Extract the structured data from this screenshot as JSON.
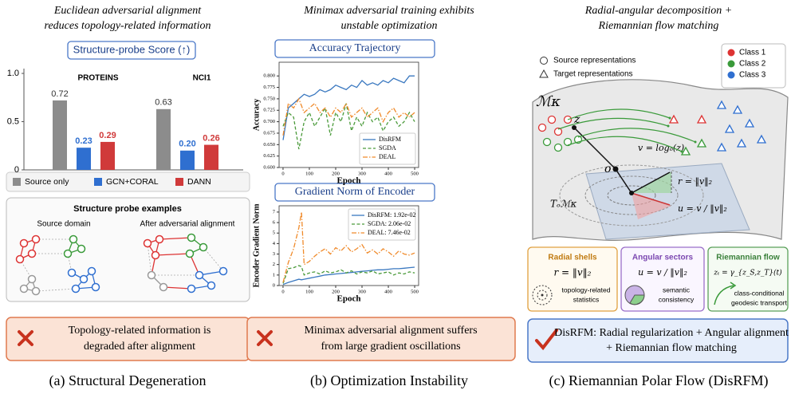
{
  "chart_data": [
    {
      "type": "bar",
      "title": "Structure-probe Score (↑)",
      "categories": [
        "PROTEINS",
        "NCI1"
      ],
      "series": [
        {
          "name": "Source only",
          "color": "#8c8c8c",
          "values": [
            0.72,
            0.63
          ],
          "value_labels": [
            "0.72",
            "0.63"
          ]
        },
        {
          "name": "GCN+CORAL",
          "color": "#2f6fd0",
          "values": [
            0.23,
            0.2
          ],
          "value_labels": [
            "0.23",
            "0.20"
          ]
        },
        {
          "name": "DANN",
          "color": "#d03a3a",
          "values": [
            0.29,
            0.26
          ],
          "value_labels": [
            "0.29",
            "0.26"
          ]
        }
      ],
      "ylim": [
        0,
        1.05
      ],
      "yticks": [
        0,
        0.5,
        {
          "value": 1,
          "label": "1.0"
        }
      ]
    },
    {
      "type": "line",
      "title": "Accuracy Trajectory",
      "x_label": "Epoch",
      "y_label": "Accuracy",
      "x": [
        0,
        20,
        40,
        60,
        80,
        100,
        120,
        140,
        160,
        180,
        200,
        220,
        240,
        260,
        280,
        300,
        320,
        340,
        360,
        380,
        400,
        420,
        440,
        460,
        480,
        500
      ],
      "series": [
        {
          "name": "DisRFM",
          "color": "#3a78c0",
          "dash": "solid",
          "values": [
            0.66,
            0.73,
            0.74,
            0.75,
            0.76,
            0.755,
            0.76,
            0.77,
            0.765,
            0.77,
            0.78,
            0.775,
            0.77,
            0.78,
            0.775,
            0.79,
            0.78,
            0.785,
            0.78,
            0.79,
            0.785,
            0.795,
            0.79,
            0.785,
            0.8,
            0.8
          ]
        },
        {
          "name": "SGDA",
          "color": "#4a9a3a",
          "dash": "dashed",
          "values": [
            0.69,
            0.72,
            0.71,
            0.64,
            0.7,
            0.72,
            0.69,
            0.71,
            0.73,
            0.67,
            0.72,
            0.7,
            0.74,
            0.68,
            0.71,
            0.69,
            0.72,
            0.7,
            0.71,
            0.68,
            0.7,
            0.71,
            0.69,
            0.7,
            0.72,
            0.7
          ]
        },
        {
          "name": "DEAL",
          "color": "#f08a2a",
          "dash": "dashdot",
          "values": [
            0.67,
            0.74,
            0.73,
            0.75,
            0.72,
            0.73,
            0.74,
            0.72,
            0.73,
            0.71,
            0.73,
            0.72,
            0.74,
            0.71,
            0.72,
            0.73,
            0.71,
            0.72,
            0.73,
            0.7,
            0.72,
            0.73,
            0.71,
            0.72,
            0.71,
            0.72
          ]
        }
      ],
      "xlim": [
        -15,
        515
      ],
      "xticks": [
        0,
        100,
        200,
        300,
        400,
        500
      ],
      "ylim": [
        0.6,
        0.83
      ],
      "yticks": [
        {
          "value": 0.6,
          "label": "0.600"
        },
        {
          "value": 0.625,
          "label": "0.625"
        },
        {
          "value": 0.65,
          "label": "0.650"
        },
        {
          "value": 0.675,
          "label": "0.675"
        },
        {
          "value": 0.7,
          "label": "0.700"
        },
        {
          "value": 0.725,
          "label": "0.725"
        },
        {
          "value": 0.75,
          "label": "0.750"
        },
        {
          "value": 0.775,
          "label": "0.775"
        },
        {
          "value": 0.8,
          "label": "0.800"
        }
      ],
      "legend": "lower right"
    },
    {
      "type": "line",
      "title": "Gradient Norm of Encoder",
      "x_label": "Epoch",
      "y_label": "Encoder Gradient Norm",
      "x": [
        0,
        20,
        40,
        60,
        70,
        80,
        100,
        120,
        140,
        160,
        180,
        200,
        220,
        240,
        260,
        280,
        300,
        320,
        340,
        360,
        380,
        400,
        420,
        440,
        460,
        480,
        500
      ],
      "series": [
        {
          "name": "DisRFM: 1.92e-02",
          "color": "#3a78c0",
          "dash": "solid",
          "values": [
            0.1,
            0.3,
            0.45,
            0.6,
            0.55,
            0.6,
            0.7,
            0.8,
            0.9,
            1.0,
            1.05,
            1.1,
            1.15,
            1.2,
            1.25,
            1.3,
            1.35,
            1.4,
            1.45,
            1.5,
            1.5,
            1.55,
            1.6,
            1.6,
            1.65,
            1.7,
            1.75
          ]
        },
        {
          "name": "SGDA: 2.06e-02",
          "color": "#4a9a3a",
          "dash": "dashed",
          "values": [
            0.2,
            1.6,
            1.7,
            1.9,
            1.8,
            1.0,
            1.2,
            1.3,
            1.1,
            1.4,
            1.2,
            1.3,
            1.5,
            1.2,
            1.4,
            1.1,
            1.3,
            1.2,
            1.4,
            1.1,
            1.2,
            1.3,
            1.0,
            1.2,
            1.1,
            1.3,
            1.2
          ]
        },
        {
          "name": "DEAL: 7.46e-02",
          "color": "#f08a2a",
          "dash": "dashdot",
          "values": [
            0.3,
            2.2,
            3.5,
            5.5,
            7.0,
            2.0,
            2.3,
            2.8,
            3.2,
            3.5,
            3.0,
            3.6,
            3.3,
            3.8,
            3.2,
            3.5,
            3.9,
            3.1,
            3.4,
            3.0,
            3.5,
            3.2,
            2.8,
            3.3,
            3.0,
            2.9,
            3.1
          ]
        }
      ],
      "xlim": [
        -15,
        515
      ],
      "xticks": [
        0,
        100,
        200,
        300,
        400,
        500
      ],
      "ylim": [
        0,
        7.6
      ],
      "yticks": [
        0,
        1,
        2,
        3,
        4,
        5,
        6,
        7
      ],
      "legend": "upper right"
    }
  ],
  "panel_a": {
    "title": [
      "Euclidean adversarial alignment",
      "reduces topology-related information"
    ],
    "examples": {
      "title": "Structure probe examples",
      "left": "Source domain",
      "right": "After adversarial alignment"
    },
    "message": [
      "Topology-related information is",
      "degraded after alignment"
    ],
    "caption": "(a) Structural Degeneration"
  },
  "panel_b": {
    "title": [
      "Minimax adversarial training exhibits",
      "unstable optimization"
    ],
    "message": [
      "Minimax adversarial alignment suffers",
      "from large gradient oscillations"
    ],
    "caption": "(b) Optimization Instability"
  },
  "panel_c": {
    "title": [
      "Radial-angular decomposition +",
      "Riemannian flow matching"
    ],
    "legend": {
      "source": "Source representations",
      "target": "Target representations"
    },
    "classes": [
      "Class 1",
      "Class 2",
      "Class 3"
    ],
    "manifold": "ℳκ",
    "z": "z",
    "o": "o",
    "log_map": "v = logₒ(z)",
    "radius": "r = ‖v‖₂",
    "direction": "u = v / ‖v‖₂",
    "tangent": "Tₒℳκ",
    "boxes": [
      {
        "title": "Radial shells",
        "formula": "r = ‖v‖₂",
        "text": [
          "topology-related",
          "statistics"
        ]
      },
      {
        "title": "Angular sectors",
        "formula": "u = v / ‖v‖₂",
        "text": [
          "semantic",
          "consistency"
        ]
      },
      {
        "title": "Riemannian flow",
        "formula": "zₜ = γ_{z_S,z_T}(t)",
        "text": [
          "class-conditional",
          "geodesic transport"
        ]
      }
    ],
    "message": [
      "DisRFM: Radial regularization + Angular alignment",
      "+ Riemannian flow matching"
    ],
    "caption": "(c) Riemannian Polar Flow (DisRFM)"
  }
}
